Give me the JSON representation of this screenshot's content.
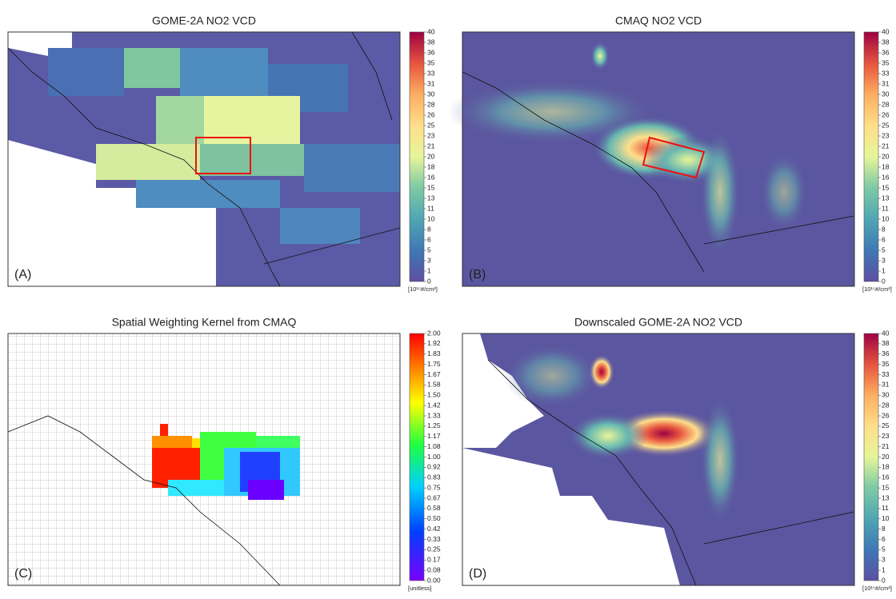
{
  "panels": [
    {
      "title": "GOME-2A NO2 VCD",
      "label": "(A)",
      "colorbar": {
        "ticks": [
          "40",
          "38",
          "36",
          "35",
          "33",
          "31",
          "30",
          "28",
          "26",
          "25",
          "23",
          "21",
          "20",
          "18",
          "16",
          "15",
          "13",
          "11",
          "10",
          "8",
          "6",
          "5",
          "3",
          "1",
          "0"
        ],
        "unit": "[10¹⁵#/cm²]"
      }
    },
    {
      "title": "CMAQ NO2 VCD",
      "label": "(B)",
      "colorbar": {
        "ticks": [
          "40",
          "38",
          "36",
          "35",
          "33",
          "31",
          "30",
          "28",
          "26",
          "25",
          "23",
          "21",
          "20",
          "18",
          "16",
          "15",
          "13",
          "11",
          "10",
          "8",
          "6",
          "5",
          "3",
          "1",
          "0"
        ],
        "unit": "[10¹⁵#/cm²]"
      }
    },
    {
      "title": "Spatial Weighting Kernel from CMAQ",
      "label": "(C)",
      "colorbar": {
        "ticks": [
          "2.00",
          "1.92",
          "1.83",
          "1.75",
          "1.67",
          "1.58",
          "1.50",
          "1.42",
          "1.33",
          "1.25",
          "1.17",
          "1.08",
          "1.00",
          "0.92",
          "0.83",
          "0.75",
          "0.67",
          "0.58",
          "0.50",
          "0.42",
          "0.33",
          "0.25",
          "0.17",
          "0.08",
          "0.00"
        ],
        "unit": "[unitless]"
      }
    },
    {
      "title": "Downscaled GOME-2A NO2 VCD",
      "label": "(D)",
      "colorbar": {
        "ticks": [
          "40",
          "38",
          "36",
          "35",
          "33",
          "31",
          "30",
          "28",
          "26",
          "25",
          "23",
          "21",
          "20",
          "18",
          "16",
          "15",
          "13",
          "11",
          "10",
          "8",
          "6",
          "5",
          "3",
          "1",
          "0"
        ],
        "unit": "[10¹⁵#/cm²]"
      }
    }
  ]
}
